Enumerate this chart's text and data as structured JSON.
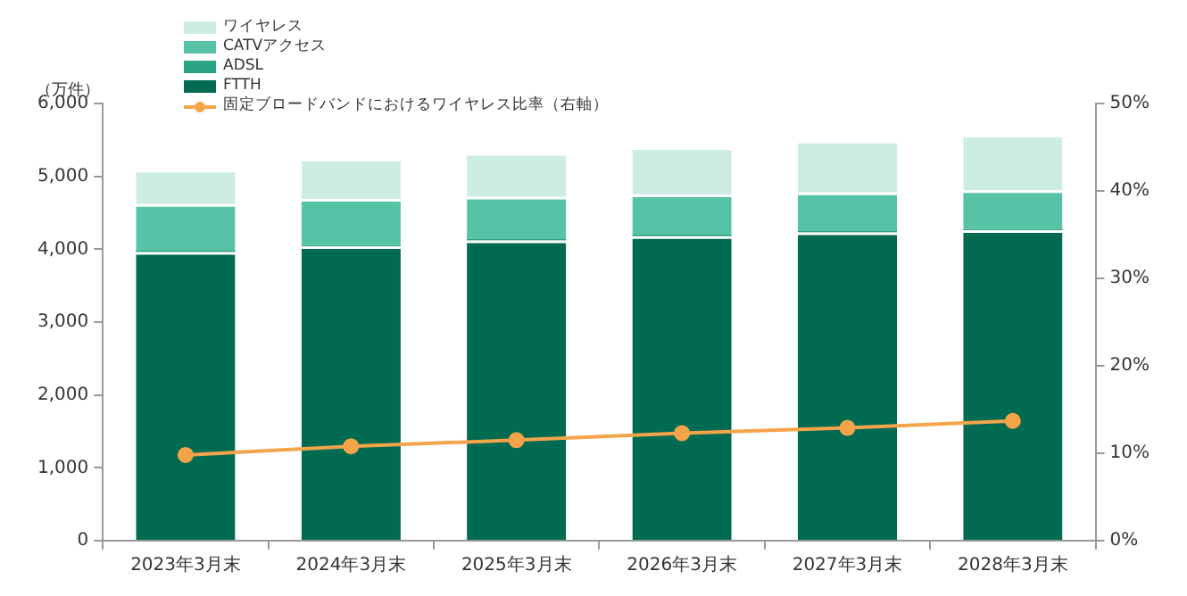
{
  "chart_data": {
    "type": "bar",
    "stacked": true,
    "ylabel": "（万件）",
    "categories": [
      "2023年3月末",
      "2024年3月末",
      "2025年3月末",
      "2026年3月末",
      "2027年3月末",
      "2028年3月末"
    ],
    "series": [
      {
        "name": "FTTH",
        "color": "#006b50",
        "values": [
          3960,
          4040,
          4120,
          4180,
          4230,
          4260
        ]
      },
      {
        "name": "ADSL",
        "color": "#2aa383",
        "values": [
          30,
          20,
          20,
          20,
          20,
          20
        ]
      },
      {
        "name": "CATVアクセス",
        "color": "#56c3a7",
        "values": [
          630,
          630,
          580,
          550,
          530,
          530
        ]
      },
      {
        "name": "ワイヤレス",
        "color": "#cdece4",
        "values": [
          470,
          550,
          600,
          650,
          710,
          760
        ]
      },
      {
        "name": "固定ブロードバンドにおけるワイヤレス比率（右軸）",
        "type": "line",
        "axis": "y2",
        "color": "#f5a44a",
        "marker": "circle",
        "values": [
          9.8,
          10.8,
          11.5,
          12.3,
          12.9,
          13.7
        ]
      }
    ],
    "ylim": [
      0,
      6000
    ],
    "yticks": [
      {
        "value": 0,
        "label": "0"
      },
      {
        "value": 1000,
        "label": "1,000"
      },
      {
        "value": 2000,
        "label": "2,000"
      },
      {
        "value": 3000,
        "label": "3,000"
      },
      {
        "value": 4000,
        "label": "4,000"
      },
      {
        "value": 5000,
        "label": "5,000"
      },
      {
        "value": 6000,
        "label": "6,000"
      }
    ],
    "y2lim": [
      0,
      50
    ],
    "y2ticks": [
      {
        "value": 0,
        "label": "0%"
      },
      {
        "value": 10,
        "label": "10%"
      },
      {
        "value": 20,
        "label": "20%"
      },
      {
        "value": 30,
        "label": "30%"
      },
      {
        "value": 40,
        "label": "40%"
      },
      {
        "value": 50,
        "label": "50%"
      }
    ],
    "grid": false,
    "legend": "top left"
  }
}
